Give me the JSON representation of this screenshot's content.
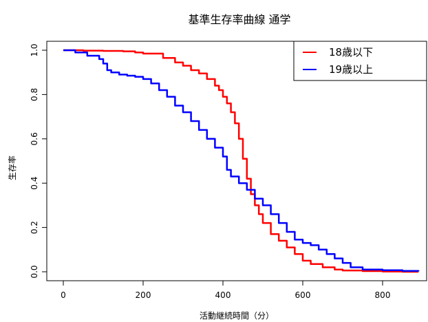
{
  "chart_data": {
    "type": "line",
    "title": "基準生存率曲線 通学",
    "xlabel": "活動継続時間（分）",
    "ylabel": "生存率",
    "xlim": [
      0,
      900
    ],
    "ylim": [
      0,
      1.0
    ],
    "xticks": [
      0,
      200,
      400,
      600,
      800
    ],
    "xtick_labels": [
      "0",
      "200",
      "400",
      "600",
      "800"
    ],
    "yticks": [
      0.0,
      0.2,
      0.4,
      0.6,
      0.8,
      1.0
    ],
    "ytick_labels": [
      "0.0",
      "0.2",
      "0.4",
      "0.6",
      "0.8",
      "1.0"
    ],
    "grid": false,
    "legend_position": "top-right",
    "series": [
      {
        "name": "18歳以下",
        "color": "#ff0000",
        "x": [
          0,
          50,
          100,
          150,
          180,
          200,
          250,
          280,
          300,
          320,
          340,
          360,
          380,
          390,
          400,
          410,
          420,
          430,
          440,
          450,
          460,
          470,
          480,
          490,
          500,
          520,
          540,
          560,
          580,
          600,
          620,
          650,
          680,
          700,
          750,
          800,
          850,
          890
        ],
        "y": [
          1.0,
          0.998,
          0.997,
          0.995,
          0.99,
          0.985,
          0.965,
          0.945,
          0.93,
          0.91,
          0.895,
          0.87,
          0.84,
          0.82,
          0.79,
          0.76,
          0.72,
          0.67,
          0.6,
          0.51,
          0.42,
          0.35,
          0.3,
          0.26,
          0.22,
          0.17,
          0.14,
          0.11,
          0.08,
          0.05,
          0.035,
          0.02,
          0.01,
          0.006,
          0.003,
          0.001,
          0.0,
          0.0
        ]
      },
      {
        "name": "19歳以上",
        "color": "#0000ff",
        "x": [
          0,
          30,
          60,
          90,
          100,
          110,
          120,
          140,
          160,
          180,
          200,
          220,
          240,
          260,
          280,
          300,
          320,
          340,
          360,
          380,
          400,
          410,
          420,
          440,
          460,
          480,
          500,
          520,
          540,
          560,
          580,
          600,
          620,
          640,
          660,
          680,
          700,
          720,
          750,
          800,
          850,
          890
        ],
        "y": [
          1.0,
          0.99,
          0.975,
          0.96,
          0.94,
          0.91,
          0.9,
          0.89,
          0.885,
          0.88,
          0.87,
          0.85,
          0.82,
          0.79,
          0.75,
          0.72,
          0.68,
          0.64,
          0.6,
          0.56,
          0.52,
          0.46,
          0.43,
          0.4,
          0.37,
          0.33,
          0.3,
          0.26,
          0.22,
          0.18,
          0.145,
          0.13,
          0.12,
          0.1,
          0.08,
          0.06,
          0.04,
          0.02,
          0.01,
          0.007,
          0.004,
          0.002
        ]
      }
    ]
  }
}
